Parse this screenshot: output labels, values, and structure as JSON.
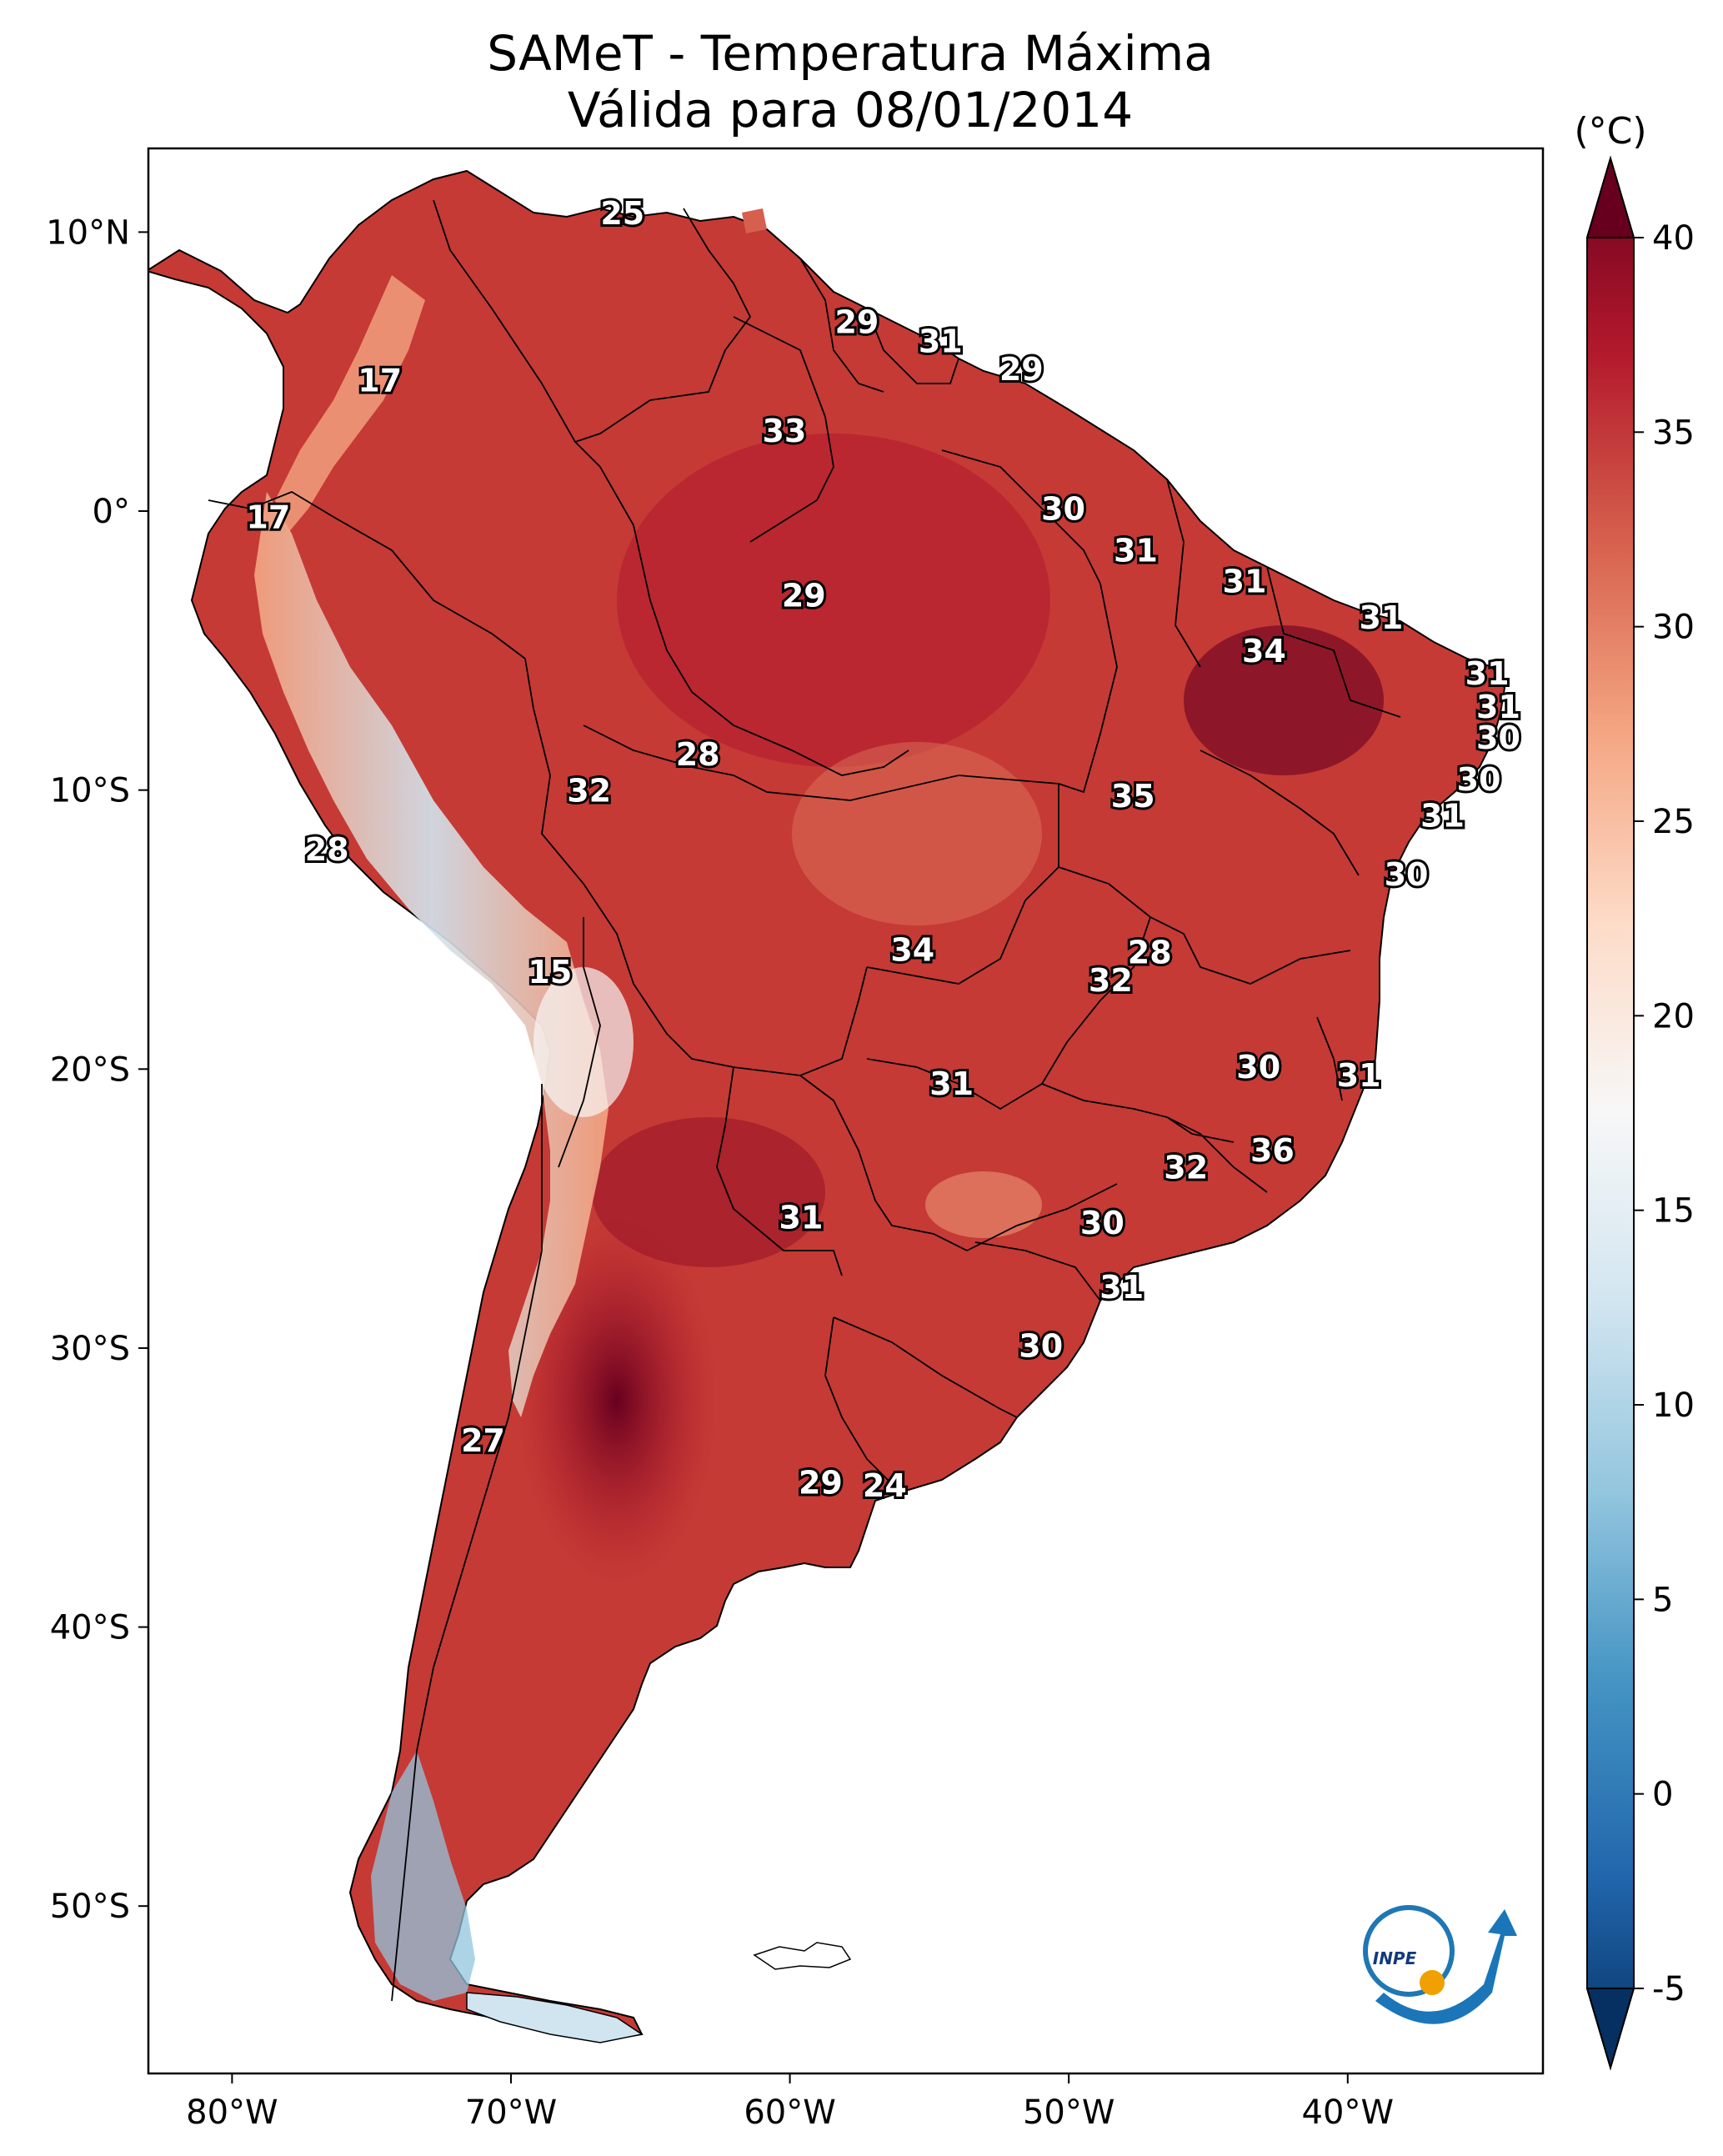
{
  "title": {
    "line1": "SAMeT - Temperatura Máxima",
    "line2": "Válida para 08/01/2014"
  },
  "map": {
    "lon_range": [
      -83,
      -33
    ],
    "lat_range": [
      -56,
      13
    ],
    "lon_ticks": [
      "80°W",
      "70°W",
      "60°W",
      "50°W",
      "40°W"
    ],
    "lon_tick_values": [
      -80,
      -70,
      -60,
      -50,
      -40
    ],
    "lat_ticks": [
      "10°N",
      "0°",
      "10°S",
      "20°S",
      "30°S",
      "40°S",
      "50°S"
    ],
    "lat_tick_values": [
      10,
      0,
      -10,
      -20,
      -30,
      -40,
      -50
    ],
    "labels": [
      {
        "text": "25",
        "lon": -66,
        "lat": 10.6
      },
      {
        "text": "17",
        "lon": -74.7,
        "lat": 4.6
      },
      {
        "text": "17",
        "lon": -78.7,
        "lat": -0.3
      },
      {
        "text": "29",
        "lon": -57.6,
        "lat": 6.7
      },
      {
        "text": "31",
        "lon": -54.6,
        "lat": 6.0
      },
      {
        "text": "29",
        "lon": -51.7,
        "lat": 5.0
      },
      {
        "text": "33",
        "lon": -60.2,
        "lat": 2.8
      },
      {
        "text": "30",
        "lon": -50.2,
        "lat": 0.0
      },
      {
        "text": "31",
        "lon": -47.6,
        "lat": -1.5
      },
      {
        "text": "31",
        "lon": -43.7,
        "lat": -2.6
      },
      {
        "text": "29",
        "lon": -59.5,
        "lat": -3.1
      },
      {
        "text": "31",
        "lon": -38.8,
        "lat": -3.9
      },
      {
        "text": "34",
        "lon": -43.0,
        "lat": -5.1
      },
      {
        "text": "31",
        "lon": -35.0,
        "lat": -5.9
      },
      {
        "text": "31",
        "lon": -34.6,
        "lat": -7.1
      },
      {
        "text": "30",
        "lon": -34.6,
        "lat": -8.2
      },
      {
        "text": "28",
        "lon": -63.3,
        "lat": -8.8
      },
      {
        "text": "32",
        "lon": -67.2,
        "lat": -10.1
      },
      {
        "text": "35",
        "lon": -47.7,
        "lat": -10.3
      },
      {
        "text": "30",
        "lon": -35.3,
        "lat": -9.7
      },
      {
        "text": "31",
        "lon": -36.6,
        "lat": -11.0
      },
      {
        "text": "28",
        "lon": -76.6,
        "lat": -12.2
      },
      {
        "text": "30",
        "lon": -37.9,
        "lat": -13.1
      },
      {
        "text": "34",
        "lon": -55.6,
        "lat": -15.8
      },
      {
        "text": "28",
        "lon": -47.1,
        "lat": -15.9
      },
      {
        "text": "32",
        "lon": -48.5,
        "lat": -16.9
      },
      {
        "text": "15",
        "lon": -68.6,
        "lat": -16.6
      },
      {
        "text": "30",
        "lon": -43.2,
        "lat": -20.0
      },
      {
        "text": "31",
        "lon": -39.6,
        "lat": -20.3
      },
      {
        "text": "31",
        "lon": -54.2,
        "lat": -20.6
      },
      {
        "text": "36",
        "lon": -42.7,
        "lat": -23.0
      },
      {
        "text": "32",
        "lon": -45.8,
        "lat": -23.6
      },
      {
        "text": "31",
        "lon": -59.6,
        "lat": -25.4
      },
      {
        "text": "30",
        "lon": -48.8,
        "lat": -25.6
      },
      {
        "text": "31",
        "lon": -48.1,
        "lat": -27.9
      },
      {
        "text": "30",
        "lon": -51.0,
        "lat": -30.0
      },
      {
        "text": "27",
        "lon": -71.0,
        "lat": -33.4
      },
      {
        "text": "29",
        "lon": -58.9,
        "lat": -34.9
      },
      {
        "text": "24",
        "lon": -56.6,
        "lat": -35.0
      }
    ]
  },
  "colorbar": {
    "unit": "(°C)",
    "ticks": [
      "-5",
      "0",
      "5",
      "10",
      "15",
      "20",
      "25",
      "30",
      "35",
      "40"
    ],
    "tick_values": [
      -5,
      0,
      5,
      10,
      15,
      20,
      25,
      30,
      35,
      40
    ],
    "range": [
      -5,
      40
    ],
    "colors": [
      "#053061",
      "#2166ac",
      "#4393c3",
      "#92c5de",
      "#d1e5f0",
      "#f7f7f7",
      "#fddbc7",
      "#f4a582",
      "#d6604d",
      "#b2182b",
      "#67001f"
    ]
  },
  "logo": {
    "text": "INPE"
  }
}
